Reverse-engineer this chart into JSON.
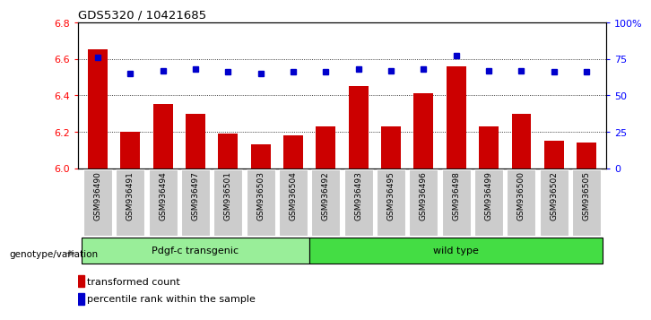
{
  "title": "GDS5320 / 10421685",
  "categories": [
    "GSM936490",
    "GSM936491",
    "GSM936494",
    "GSM936497",
    "GSM936501",
    "GSM936503",
    "GSM936504",
    "GSM936492",
    "GSM936493",
    "GSM936495",
    "GSM936496",
    "GSM936498",
    "GSM936499",
    "GSM936500",
    "GSM936502",
    "GSM936505"
  ],
  "bar_values": [
    6.65,
    6.2,
    6.35,
    6.3,
    6.19,
    6.13,
    6.18,
    6.23,
    6.45,
    6.23,
    6.41,
    6.56,
    6.23,
    6.3,
    6.15,
    6.14
  ],
  "dot_values": [
    76,
    65,
    67,
    68,
    66,
    65,
    66,
    66,
    68,
    67,
    68,
    77,
    67,
    67,
    66,
    66
  ],
  "ylim_left": [
    6.0,
    6.8
  ],
  "ylim_right": [
    0,
    100
  ],
  "yticks_left": [
    6.0,
    6.2,
    6.4,
    6.6,
    6.8
  ],
  "yticks_right": [
    0,
    25,
    50,
    75,
    100
  ],
  "ytick_right_labels": [
    "0",
    "25",
    "50",
    "75",
    "100%"
  ],
  "bar_color": "#cc0000",
  "dot_color": "#0000cc",
  "group1_label": "Pdgf-c transgenic",
  "group2_label": "wild type",
  "group1_color": "#99ee99",
  "group2_color": "#44dd44",
  "group1_count": 7,
  "group2_count": 9,
  "genotype_label": "genotype/variation",
  "legend_bar_label": "transformed count",
  "legend_dot_label": "percentile rank within the sample",
  "background_color": "#ffffff",
  "plot_bg_color": "#ffffff",
  "tick_label_bg": "#cccccc"
}
